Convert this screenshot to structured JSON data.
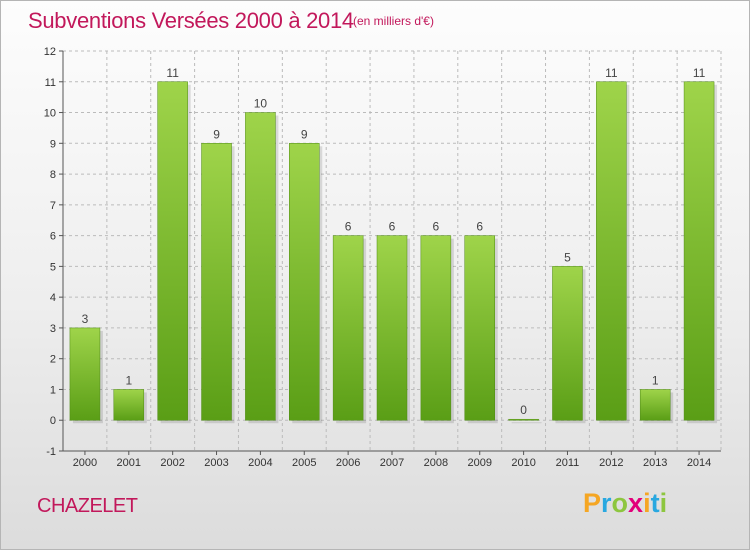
{
  "title": "Subventions Versées 2000 à 2014",
  "subtitle": "(en milliers d'€)",
  "commune": "CHAZELET",
  "logo": {
    "letters": [
      "P",
      "r",
      "o",
      "x",
      "i",
      "t",
      "i"
    ],
    "colors": [
      "#f5a623",
      "#29a8e0",
      "#8dc63f",
      "#e2007a",
      "#f5a623",
      "#29a8e0",
      "#8dc63f"
    ]
  },
  "colors": {
    "bar_top": "#9fd44a",
    "bar_bottom": "#5a9e16",
    "grid": "#bbbbbb",
    "accent": "#c2185b"
  },
  "chart_data": {
    "type": "bar",
    "categories": [
      "2000",
      "2001",
      "2002",
      "2003",
      "2004",
      "2005",
      "2006",
      "2007",
      "2008",
      "2009",
      "2010",
      "2011",
      "2012",
      "2013",
      "2014"
    ],
    "values": [
      3,
      1,
      11,
      9,
      10,
      9,
      6,
      6,
      6,
      6,
      0,
      5,
      11,
      1,
      11
    ],
    "ylim": [
      -1,
      12
    ],
    "yticks": [
      "-1",
      "0",
      "1",
      "2",
      "3",
      "4",
      "5",
      "6",
      "7",
      "8",
      "9",
      "10",
      "11",
      "12"
    ],
    "grid": true
  }
}
